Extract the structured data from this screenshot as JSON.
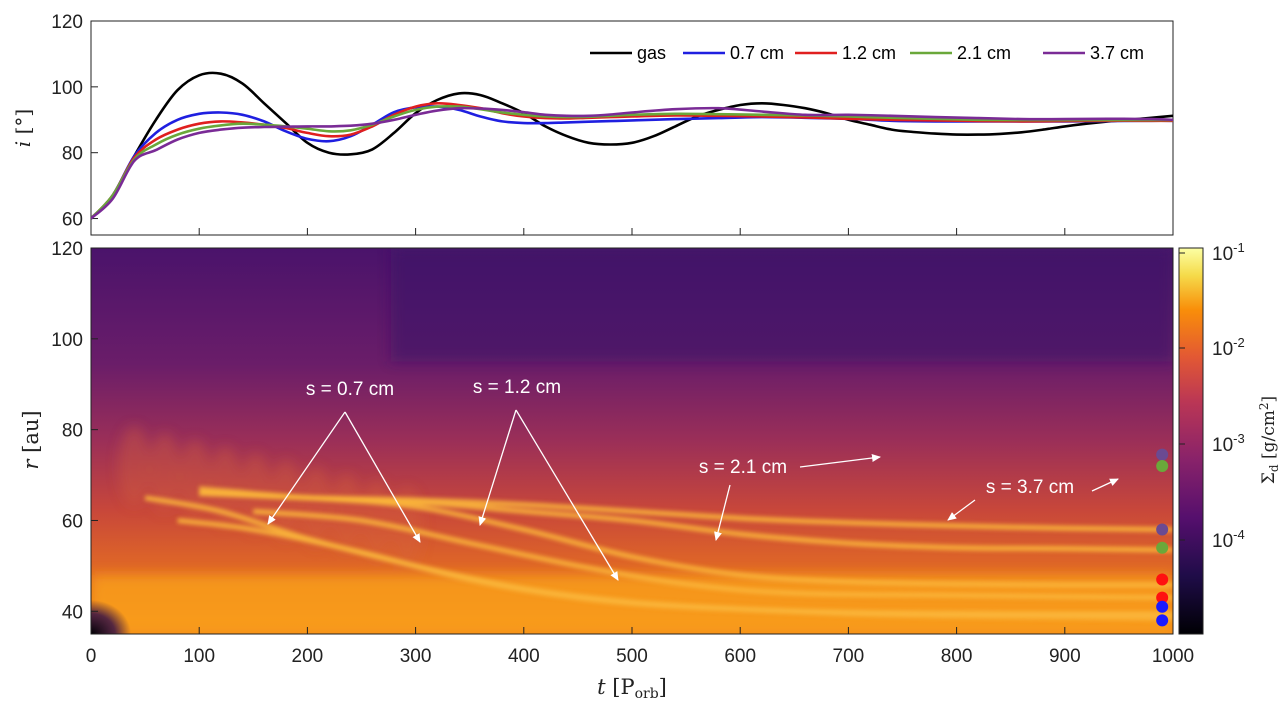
{
  "chart_data": [
    {
      "type": "line",
      "ylabel": "i [°]",
      "xlim": [
        0,
        1000
      ],
      "ylim": [
        55,
        120
      ],
      "yticks": [
        60,
        80,
        100,
        120
      ],
      "legend_placement": "top-right",
      "series": [
        {
          "name": "gas",
          "color": "#000000",
          "x": [
            0,
            20,
            40,
            60,
            80,
            100,
            120,
            140,
            160,
            180,
            200,
            220,
            240,
            260,
            280,
            300,
            320,
            340,
            360,
            380,
            400,
            420,
            440,
            460,
            480,
            500,
            520,
            540,
            560,
            580,
            600,
            620,
            640,
            660,
            680,
            700,
            720,
            740,
            760,
            780,
            800,
            820,
            840,
            860,
            880,
            900,
            920,
            940,
            960,
            980,
            1000
          ],
          "y": [
            60,
            67,
            79,
            90,
            99,
            103.5,
            104,
            101,
            95,
            89,
            83,
            80,
            79.5,
            81,
            86,
            92,
            96,
            98,
            97.5,
            95,
            92,
            88,
            85,
            83,
            82.5,
            83,
            85,
            88,
            91,
            93,
            94.5,
            95,
            94.5,
            93.5,
            92,
            90,
            88.5,
            87,
            86.3,
            85.8,
            85.5,
            85.5,
            85.7,
            86.2,
            87,
            88,
            88.8,
            89.5,
            90,
            90.6,
            91.2
          ]
        },
        {
          "name": "0.7 cm",
          "color": "#1f1fe0",
          "x": [
            0,
            20,
            40,
            60,
            80,
            100,
            120,
            140,
            160,
            180,
            200,
            220,
            240,
            260,
            280,
            300,
            320,
            340,
            360,
            380,
            400,
            420,
            440,
            460,
            480,
            500,
            540,
            580,
            620,
            660,
            700,
            740,
            780,
            820,
            860,
            900,
            940,
            980,
            1000
          ],
          "y": [
            60,
            67,
            79,
            86,
            90,
            91.8,
            92.2,
            91.5,
            89.5,
            86.5,
            84.2,
            83.5,
            85,
            88.5,
            92.3,
            93.8,
            94,
            93,
            91,
            89.5,
            89,
            89,
            89.2,
            89.4,
            89.6,
            89.8,
            90.2,
            90.5,
            90.8,
            90.6,
            90.3,
            89.7,
            89.5,
            89.5,
            89.5,
            89.5,
            89.6,
            89.7,
            89.7
          ]
        },
        {
          "name": "1.2 cm",
          "color": "#e01f1f",
          "x": [
            0,
            20,
            40,
            60,
            80,
            100,
            120,
            140,
            160,
            180,
            200,
            220,
            240,
            260,
            280,
            300,
            320,
            340,
            360,
            380,
            400,
            420,
            440,
            460,
            480,
            500,
            540,
            580,
            620,
            660,
            700,
            740,
            780,
            820,
            860,
            900,
            940,
            980,
            1000
          ],
          "y": [
            60,
            67,
            78.5,
            84,
            87,
            88.8,
            89.5,
            89.2,
            88.5,
            87.5,
            86,
            85,
            85.5,
            88,
            91.5,
            94,
            95,
            94.5,
            93.5,
            92,
            91,
            90.5,
            90.4,
            90.6,
            90.8,
            91,
            91.3,
            91.2,
            91,
            90.7,
            90.3,
            90,
            89.8,
            89.6,
            89.5,
            89.6,
            89.7,
            89.7,
            89.7
          ]
        },
        {
          "name": "2.1 cm",
          "color": "#6aa83a",
          "x": [
            0,
            20,
            40,
            60,
            80,
            100,
            120,
            140,
            160,
            180,
            200,
            220,
            240,
            260,
            280,
            300,
            320,
            340,
            360,
            380,
            400,
            420,
            440,
            460,
            480,
            500,
            540,
            580,
            620,
            660,
            700,
            740,
            780,
            820,
            860,
            900,
            940,
            980,
            1000
          ],
          "y": [
            60,
            67,
            78,
            82.5,
            85.5,
            87.3,
            88.3,
            88.8,
            88.5,
            88,
            87.3,
            86.5,
            86.8,
            88.5,
            91,
            93,
            94,
            94,
            93.2,
            92.2,
            91.5,
            91,
            90.8,
            90.9,
            91.2,
            91.5,
            91.8,
            91.7,
            91.5,
            91.3,
            91,
            90.6,
            90.3,
            90,
            89.9,
            89.9,
            89.9,
            89.9,
            89.9
          ]
        },
        {
          "name": "3.7 cm",
          "color": "#7a2b96",
          "x": [
            0,
            20,
            40,
            60,
            80,
            100,
            120,
            140,
            160,
            180,
            200,
            220,
            240,
            260,
            280,
            300,
            320,
            340,
            360,
            380,
            400,
            420,
            440,
            460,
            480,
            500,
            540,
            580,
            620,
            660,
            700,
            740,
            780,
            820,
            860,
            900,
            940,
            980,
            1000
          ],
          "y": [
            60,
            66,
            77.5,
            80.8,
            84,
            86,
            87,
            87.6,
            87.8,
            87.9,
            88,
            88,
            88.2,
            88.8,
            90,
            91.5,
            92.8,
            93.5,
            93.4,
            93,
            92.3,
            91.5,
            91.2,
            91.2,
            91.6,
            92.2,
            93.2,
            93.5,
            92.5,
            91.5,
            91.5,
            91.2,
            90.8,
            90.5,
            90.2,
            90.2,
            90.3,
            90.2,
            90
          ]
        }
      ]
    },
    {
      "type": "heatmap",
      "xlabel": "t [Porb]",
      "ylabel": "r [au]",
      "xlim": [
        0,
        1000
      ],
      "ylim": [
        35,
        120
      ],
      "xticks": [
        0,
        100,
        200,
        300,
        400,
        500,
        600,
        700,
        800,
        900,
        1000
      ],
      "yticks": [
        40,
        60,
        80,
        100,
        120
      ],
      "colorbar": {
        "label": "Σd [g/cm²]",
        "scale": "log",
        "range": [
          1e-05,
          0.1
        ],
        "ticks": [
          "10-1",
          "10-2",
          "10-3",
          "10-4"
        ]
      },
      "ridges": [
        {
          "size": "0.7 cm",
          "t": [
            50,
            120,
            200,
            300,
            400,
            500,
            600,
            700,
            800,
            900,
            1000
          ],
          "r": [
            65,
            62,
            56,
            50,
            45,
            42,
            40.5,
            39.5,
            39,
            38.8,
            38.5
          ]
        },
        {
          "size": "0.7 cm",
          "t": [
            80,
            150,
            250,
            350,
            450,
            550,
            700,
            850,
            1000
          ],
          "r": [
            60,
            58,
            53,
            47,
            43,
            41,
            39.8,
            39.5,
            39.5
          ]
        },
        {
          "size": "1.2 cm",
          "t": [
            100,
            200,
            300,
            400,
            500,
            600,
            700,
            800,
            900,
            1000
          ],
          "r": [
            66,
            65,
            63,
            58,
            52,
            48,
            46.5,
            46,
            45.8,
            45.8
          ]
        },
        {
          "size": "1.2 cm",
          "t": [
            150,
            250,
            350,
            450,
            550,
            650,
            800,
            1000
          ],
          "r": [
            62,
            60,
            55,
            50,
            46,
            44,
            43.5,
            43
          ]
        },
        {
          "size": "2.1 cm",
          "t": [
            100,
            200,
            300,
            400,
            500,
            600,
            700,
            800,
            900,
            1000
          ],
          "r": [
            67,
            65,
            64,
            62,
            60,
            57,
            55,
            54,
            53.8,
            53.5
          ]
        },
        {
          "size": "3.7 cm",
          "t": [
            100,
            200,
            300,
            400,
            500,
            600,
            700,
            800,
            900,
            1000
          ],
          "r": [
            66,
            65,
            64.5,
            63.5,
            62,
            60.5,
            59.5,
            58.8,
            58.3,
            58
          ]
        }
      ],
      "markers": [
        {
          "r": 74.5,
          "color": "#6b4a92"
        },
        {
          "r": 72,
          "color": "#6aa83a"
        },
        {
          "r": 58,
          "color": "#6b4a92"
        },
        {
          "r": 54,
          "color": "#6aa83a"
        },
        {
          "r": 47,
          "color": "#ff1010"
        },
        {
          "r": 43,
          "color": "#ff1010"
        },
        {
          "r": 41,
          "color": "#1a1aff"
        },
        {
          "r": 38,
          "color": "#1a1aff"
        }
      ],
      "annotations": [
        {
          "text": "s = 0.7 cm"
        },
        {
          "text": "s = 1.2 cm"
        },
        {
          "text": "s = 2.1 cm"
        },
        {
          "text": "s = 3.7 cm"
        }
      ]
    }
  ]
}
